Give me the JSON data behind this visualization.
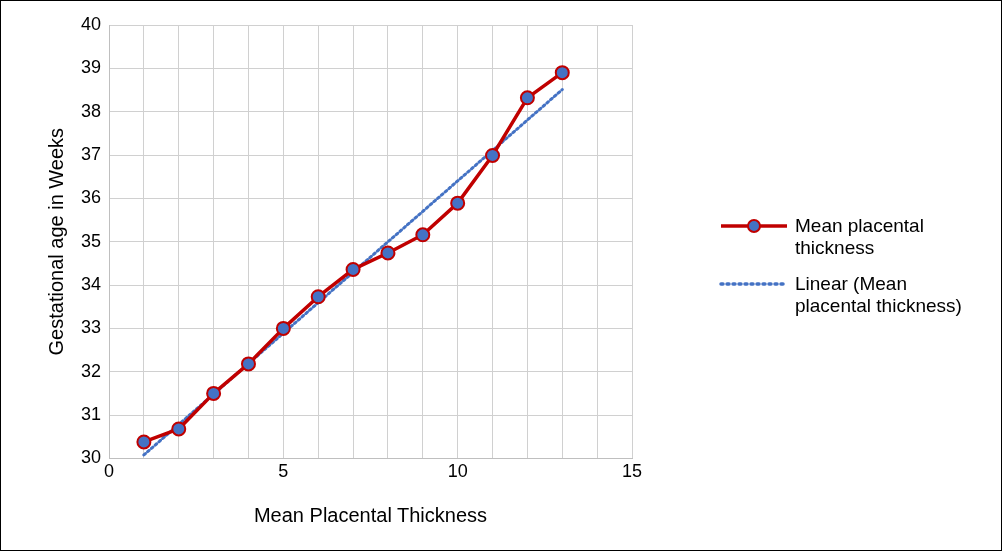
{
  "chart_data": {
    "type": "line",
    "xlabel": "Mean Placental Thickness",
    "ylabel": "Gestational age in Weeks",
    "x": [
      1,
      2,
      3,
      4,
      5,
      6,
      7,
      8,
      9,
      10,
      11,
      12,
      13
    ],
    "series": [
      {
        "name": "Mean placental thickness",
        "color": "#c00000",
        "marker": "circle",
        "line_style": "solid",
        "values": [
          30.38,
          30.68,
          31.5,
          32.18,
          33.0,
          33.73,
          34.36,
          34.74,
          35.16,
          35.89,
          36.99,
          38.32,
          38.9
        ]
      },
      {
        "name": "Linear (Mean placental thickness)",
        "color": "#4472c4",
        "marker": "none",
        "line_style": "dotted",
        "x": [
          1,
          13
        ],
        "values": [
          30.08,
          38.51
        ]
      }
    ],
    "xlim": [
      0,
      15
    ],
    "xticks": [
      0,
      {
        "value": 1,
        "label": null
      },
      {
        "value": 2,
        "label": null
      },
      {
        "value": 3,
        "label": null
      },
      {
        "value": 4,
        "label": null
      },
      5,
      {
        "value": 6,
        "label": null
      },
      {
        "value": 7,
        "label": null
      },
      {
        "value": 8,
        "label": null
      },
      {
        "value": 9,
        "label": null
      },
      10,
      {
        "value": 11,
        "label": null
      },
      {
        "value": 12,
        "label": null
      },
      {
        "value": 13,
        "label": null
      },
      {
        "value": 14,
        "label": null
      },
      15
    ],
    "ylim": [
      30,
      40
    ],
    "yticks": [
      30,
      31,
      32,
      33,
      34,
      35,
      36,
      37,
      38,
      39,
      40
    ],
    "grid": true,
    "legend": "right"
  }
}
